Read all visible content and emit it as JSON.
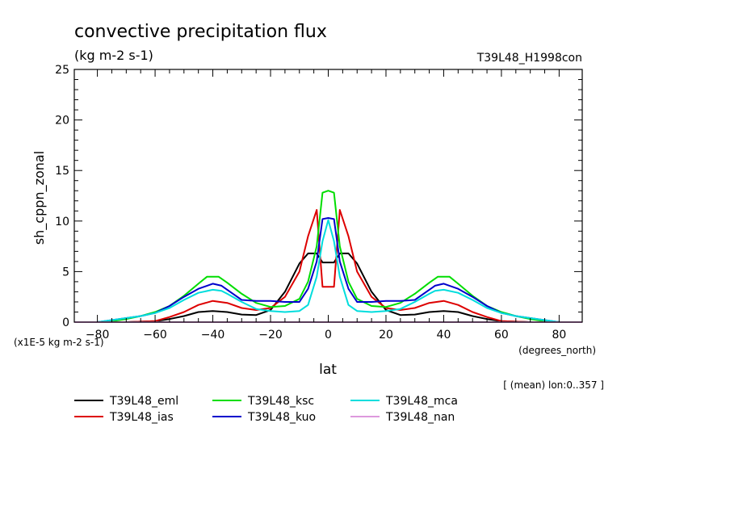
{
  "chart_data": {
    "type": "line",
    "title": "convective precipitation flux",
    "subtitle": "(kg m-2 s-1)",
    "run_label": "T39L48_H1998con",
    "xlabel": "lat",
    "x_units": "(degrees_north)",
    "ylabel": "sh_cppn_zonal",
    "y_scale_note": "(x1E-5 kg m-2 s-1)",
    "note": "[ (mean) lon:0..357 ]",
    "xlim": [
      -88,
      88
    ],
    "ylim": [
      0,
      25
    ],
    "x_ticks": [
      -80,
      -60,
      -40,
      -20,
      0,
      20,
      40,
      60,
      80
    ],
    "y_ticks": [
      0,
      5,
      10,
      15,
      20,
      25
    ],
    "grid": false,
    "legend_position": "bottom",
    "series": [
      {
        "name": "T39L48_eml",
        "color": "#000000",
        "points": [
          [
            -88,
            0
          ],
          [
            -80,
            0
          ],
          [
            -70,
            0
          ],
          [
            -60,
            0.1
          ],
          [
            -55,
            0.3
          ],
          [
            -50,
            0.6
          ],
          [
            -45,
            1
          ],
          [
            -40,
            1.1
          ],
          [
            -35,
            1
          ],
          [
            -30,
            0.75
          ],
          [
            -25,
            0.7
          ],
          [
            -20,
            1.2
          ],
          [
            -15,
            3
          ],
          [
            -10,
            5.8
          ],
          [
            -7,
            6.8
          ],
          [
            -4,
            6.8
          ],
          [
            -2,
            5.9
          ],
          [
            0,
            5.9
          ],
          [
            2,
            5.9
          ],
          [
            4,
            6.8
          ],
          [
            7,
            6.8
          ],
          [
            10,
            5.8
          ],
          [
            15,
            3
          ],
          [
            20,
            1.2
          ],
          [
            25,
            0.7
          ],
          [
            30,
            0.75
          ],
          [
            35,
            1
          ],
          [
            40,
            1.1
          ],
          [
            45,
            1
          ],
          [
            50,
            0.6
          ],
          [
            55,
            0.3
          ],
          [
            60,
            0.1
          ],
          [
            70,
            0
          ],
          [
            80,
            0
          ],
          [
            88,
            0
          ]
        ]
      },
      {
        "name": "T39L48_ias",
        "color": "#dd0000",
        "points": [
          [
            -88,
            0
          ],
          [
            -80,
            0
          ],
          [
            -70,
            0
          ],
          [
            -60,
            0.1
          ],
          [
            -55,
            0.5
          ],
          [
            -50,
            1
          ],
          [
            -45,
            1.7
          ],
          [
            -40,
            2.1
          ],
          [
            -35,
            1.9
          ],
          [
            -30,
            1.4
          ],
          [
            -25,
            1.2
          ],
          [
            -20,
            1.4
          ],
          [
            -15,
            2.5
          ],
          [
            -10,
            5
          ],
          [
            -7,
            8.5
          ],
          [
            -4,
            11.1
          ],
          [
            -2,
            3.5
          ],
          [
            0,
            3.5
          ],
          [
            2,
            3.5
          ],
          [
            4,
            11.1
          ],
          [
            7,
            8.5
          ],
          [
            10,
            5
          ],
          [
            15,
            2.5
          ],
          [
            20,
            1.4
          ],
          [
            25,
            1.2
          ],
          [
            30,
            1.4
          ],
          [
            35,
            1.9
          ],
          [
            40,
            2.1
          ],
          [
            45,
            1.7
          ],
          [
            50,
            1
          ],
          [
            55,
            0.5
          ],
          [
            60,
            0.1
          ],
          [
            70,
            0
          ],
          [
            80,
            0
          ],
          [
            88,
            0
          ]
        ]
      },
      {
        "name": "T39L48_ksc",
        "color": "#00dd00",
        "points": [
          [
            -88,
            0
          ],
          [
            -80,
            0
          ],
          [
            -75,
            0.1
          ],
          [
            -70,
            0.3
          ],
          [
            -65,
            0.6
          ],
          [
            -60,
            1
          ],
          [
            -55,
            1.6
          ],
          [
            -50,
            2.6
          ],
          [
            -45,
            3.8
          ],
          [
            -42,
            4.5
          ],
          [
            -38,
            4.5
          ],
          [
            -35,
            3.9
          ],
          [
            -30,
            2.8
          ],
          [
            -25,
            1.9
          ],
          [
            -20,
            1.5
          ],
          [
            -15,
            1.6
          ],
          [
            -10,
            2.3
          ],
          [
            -7,
            4
          ],
          [
            -4,
            7.5
          ],
          [
            -2,
            12.8
          ],
          [
            0,
            13
          ],
          [
            2,
            12.8
          ],
          [
            4,
            7.5
          ],
          [
            7,
            4
          ],
          [
            10,
            2.3
          ],
          [
            15,
            1.6
          ],
          [
            20,
            1.5
          ],
          [
            25,
            1.9
          ],
          [
            30,
            2.8
          ],
          [
            35,
            3.9
          ],
          [
            38,
            4.5
          ],
          [
            42,
            4.5
          ],
          [
            45,
            3.8
          ],
          [
            50,
            2.6
          ],
          [
            55,
            1.6
          ],
          [
            60,
            1
          ],
          [
            65,
            0.6
          ],
          [
            70,
            0.3
          ],
          [
            75,
            0.1
          ],
          [
            80,
            0
          ],
          [
            88,
            0
          ]
        ]
      },
      {
        "name": "T39L48_kuo",
        "color": "#0000cc",
        "points": [
          [
            -88,
            0
          ],
          [
            -80,
            0
          ],
          [
            -75,
            0.2
          ],
          [
            -70,
            0.4
          ],
          [
            -65,
            0.6
          ],
          [
            -60,
            0.9
          ],
          [
            -55,
            1.6
          ],
          [
            -50,
            2.5
          ],
          [
            -45,
            3.3
          ],
          [
            -40,
            3.8
          ],
          [
            -37,
            3.6
          ],
          [
            -35,
            3.2
          ],
          [
            -30,
            2.2
          ],
          [
            -25,
            2.1
          ],
          [
            -20,
            2.1
          ],
          [
            -15,
            2
          ],
          [
            -10,
            2
          ],
          [
            -7,
            3.3
          ],
          [
            -4,
            6
          ],
          [
            -2,
            10.2
          ],
          [
            0,
            10.3
          ],
          [
            2,
            10.2
          ],
          [
            4,
            6
          ],
          [
            7,
            3.3
          ],
          [
            10,
            2
          ],
          [
            15,
            2
          ],
          [
            20,
            2.1
          ],
          [
            25,
            2.1
          ],
          [
            30,
            2.2
          ],
          [
            35,
            3.2
          ],
          [
            37,
            3.6
          ],
          [
            40,
            3.8
          ],
          [
            45,
            3.3
          ],
          [
            50,
            2.5
          ],
          [
            55,
            1.6
          ],
          [
            60,
            0.9
          ],
          [
            65,
            0.6
          ],
          [
            70,
            0.4
          ],
          [
            75,
            0.2
          ],
          [
            80,
            0
          ],
          [
            88,
            0
          ]
        ]
      },
      {
        "name": "T39L48_mca",
        "color": "#00dddd",
        "points": [
          [
            -88,
            0
          ],
          [
            -80,
            0
          ],
          [
            -75,
            0.2
          ],
          [
            -70,
            0.4
          ],
          [
            -65,
            0.6
          ],
          [
            -60,
            0.9
          ],
          [
            -55,
            1.4
          ],
          [
            -50,
            2.2
          ],
          [
            -45,
            2.9
          ],
          [
            -40,
            3.2
          ],
          [
            -37,
            3.1
          ],
          [
            -35,
            2.8
          ],
          [
            -30,
            2
          ],
          [
            -25,
            1.3
          ],
          [
            -20,
            1.1
          ],
          [
            -15,
            1
          ],
          [
            -10,
            1.1
          ],
          [
            -7,
            1.7
          ],
          [
            -4,
            4.5
          ],
          [
            -2,
            8
          ],
          [
            0,
            10.1
          ],
          [
            2,
            8
          ],
          [
            4,
            4.5
          ],
          [
            7,
            1.7
          ],
          [
            10,
            1.1
          ],
          [
            15,
            1
          ],
          [
            20,
            1.1
          ],
          [
            25,
            1.3
          ],
          [
            30,
            2
          ],
          [
            35,
            2.8
          ],
          [
            37,
            3.1
          ],
          [
            40,
            3.2
          ],
          [
            45,
            2.9
          ],
          [
            50,
            2.2
          ],
          [
            55,
            1.4
          ],
          [
            60,
            0.9
          ],
          [
            65,
            0.6
          ],
          [
            70,
            0.4
          ],
          [
            75,
            0.2
          ],
          [
            80,
            0
          ],
          [
            88,
            0
          ]
        ]
      },
      {
        "name": "T39L48_nan",
        "color": "#dd99dd",
        "points": [
          [
            -88,
            0
          ],
          [
            88,
            0
          ]
        ]
      }
    ]
  }
}
